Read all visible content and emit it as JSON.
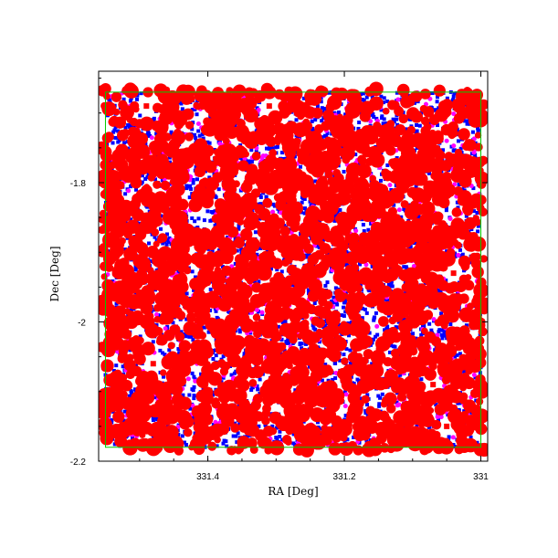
{
  "chart_data": {
    "type": "scatter",
    "title": "",
    "xlabel": "RA [Deg]",
    "ylabel": "Dec [Deg]",
    "xlim": [
      331.56,
      330.99
    ],
    "ylim": [
      -2.2,
      -1.64
    ],
    "xticks": [
      331.4,
      331.2,
      331
    ],
    "xtick_labels": [
      "331.4",
      "331.2",
      "331"
    ],
    "yticks": [
      -1.8,
      -2,
      -2.2
    ],
    "ytick_labels": [
      "-1.8",
      "-2",
      "-2.2"
    ],
    "grid": false,
    "legend": "none",
    "colors": {
      "background": "#ffffff",
      "red_layer": "#ff0000",
      "blue_layer": "#0000ff",
      "magenta_layer": "#ff00ff",
      "footprint_outline": "#00cc00",
      "axes": "#000000"
    },
    "layers": [
      {
        "color": "red",
        "description": "dense red masked regions covering most of the field"
      },
      {
        "color": "blue",
        "description": "blue sources filling gaps"
      },
      {
        "color": "magenta",
        "description": "magenta sources"
      }
    ],
    "footprint": {
      "shape": "rectangle",
      "ra_range": [
        331.55,
        331.0
      ],
      "dec_range": [
        -2.18,
        -1.67
      ]
    },
    "holes": [
      {
        "ra": 331.48,
        "dec": -2.06
      },
      {
        "ra": 331.04,
        "dec": -1.93
      },
      {
        "ra": 331.07,
        "dec": -2.09
      },
      {
        "ra": 331.05,
        "dec": -2.15
      },
      {
        "ra": 331.49,
        "dec": -1.69
      },
      {
        "ra": 331.31,
        "dec": -1.69
      }
    ]
  }
}
